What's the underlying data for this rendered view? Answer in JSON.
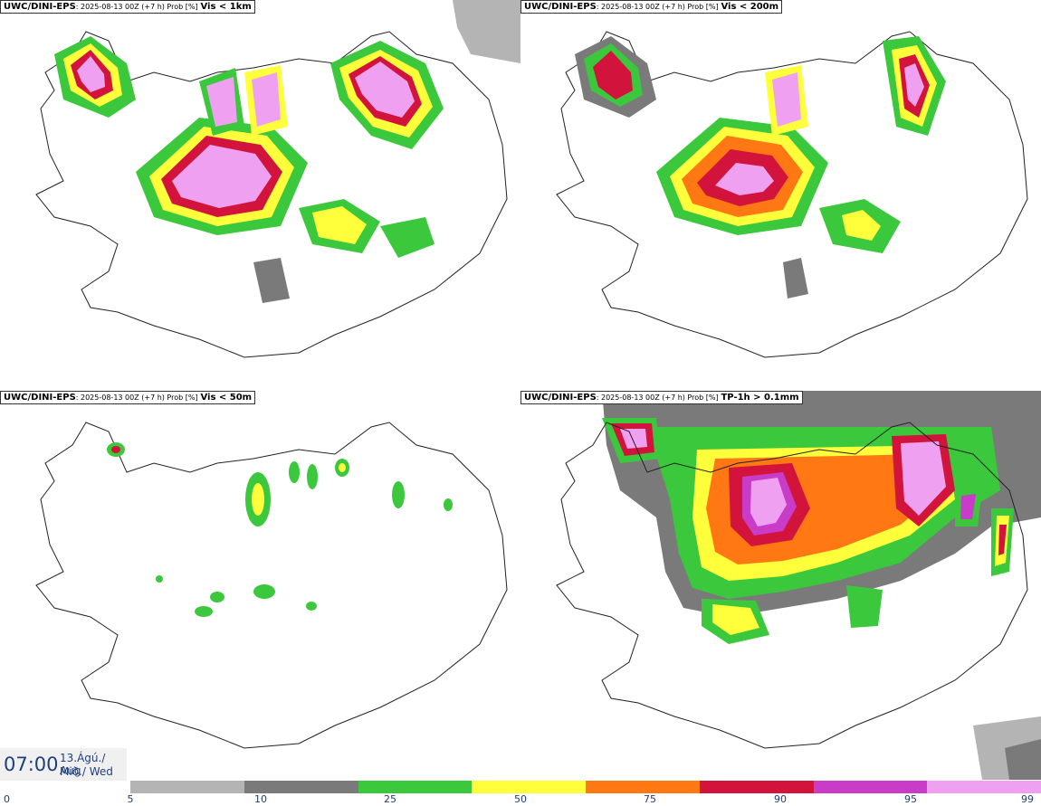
{
  "panels": [
    {
      "model": "UWC/DINI-EPS",
      "meta": ": 2025-08-13 00Z (+7 h) Prob [%]",
      "variable": "Vis < 1km"
    },
    {
      "model": "UWC/DINI-EPS",
      "meta": ": 2025-08-13 00Z (+7 h) Prob [%]",
      "variable": "Vis < 200m"
    },
    {
      "model": "UWC/DINI-EPS",
      "meta": ": 2025-08-13 00Z (+7 h) Prob [%]",
      "variable": "Vis < 50m"
    },
    {
      "model": "UWC/DINI-EPS",
      "meta": ": 2025-08-13 00Z (+7 h) Prob [%]",
      "variable": "TP-1h > 0.1mm"
    }
  ],
  "valid_time": {
    "time": "07:00",
    "date": "13.Ágú./ Aug",
    "weekday": "Mið./ Wed"
  },
  "legend": {
    "ticks": [
      "0",
      "5",
      "10",
      "25",
      "50",
      "75",
      "90",
      "95",
      "99"
    ],
    "colors": [
      "#b4b4b4",
      "#7a7a7a",
      "#3cc83c",
      "#ffff3c",
      "#ff7814",
      "#d2143c",
      "#c83cc8",
      "#f0a0f0"
    ]
  }
}
